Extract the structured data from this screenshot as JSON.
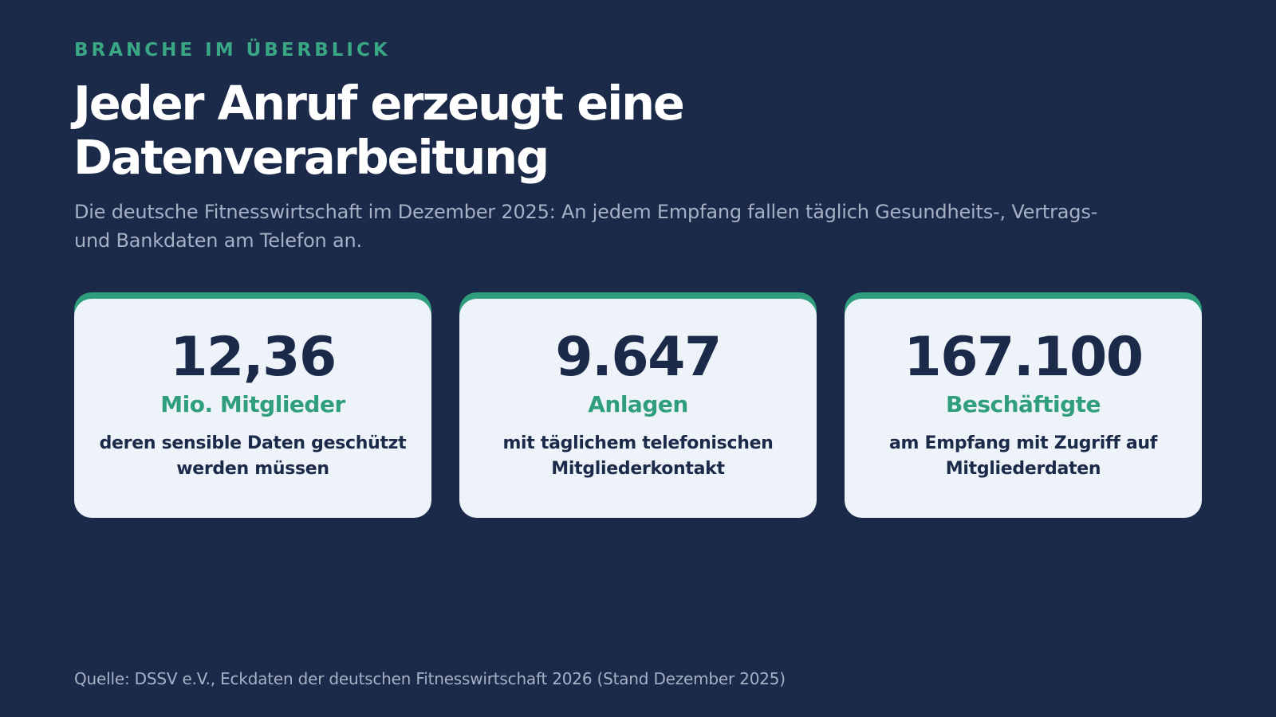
{
  "eyebrow": "BRANCHE IM ÜBERBLICK",
  "headline": "Jeder Anruf erzeugt eine Datenverarbeitung",
  "subtitle": "Die deutsche Fitnesswirtschaft im Dezember 2025: An jedem Empfang fallen täglich Gesundheits-, Vertrags- und Bankdaten am Telefon an.",
  "stats": [
    {
      "value": "12,36",
      "unit": "Mio. Mitglieder",
      "description": "deren sensible Daten geschützt werden müssen"
    },
    {
      "value": "9.647",
      "unit": "Anlagen",
      "description": "mit täglichem telefonischen Mitgliederkontakt"
    },
    {
      "value": "167.100",
      "unit": "Beschäftigte",
      "description": "am Empfang mit Zugriff auf Mitgliederdaten"
    }
  ],
  "source": "Quelle: DSSV e.V., Eckdaten der deutschen Fitnesswirtschaft 2026 (Stand Dezember 2025)",
  "colors": {
    "background": "#1c2a4a",
    "accent": "#2e9e7c",
    "card_background": "#eef3f9",
    "headline": "#ffffff",
    "muted_text": "#a6b1c6"
  }
}
